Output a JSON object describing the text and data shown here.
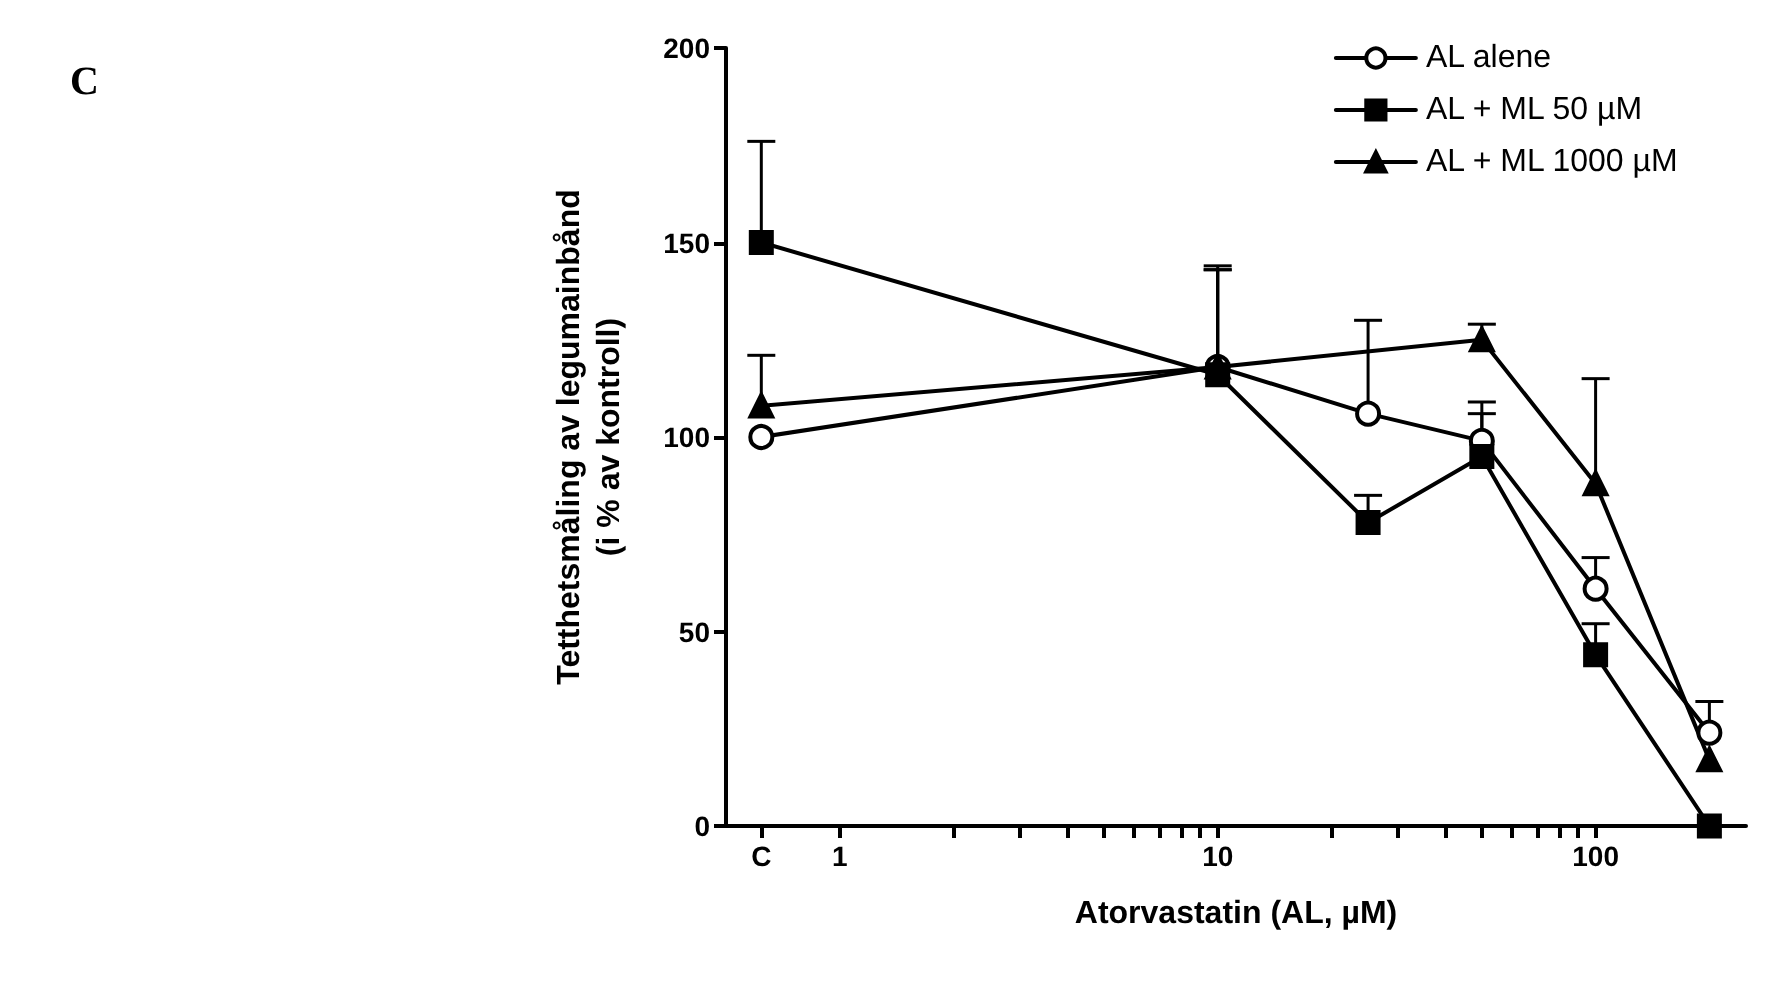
{
  "chart_data": {
    "type": "line",
    "title": "C",
    "xlabel": "Atorvastatin (AL, µM)",
    "ylabel": "Tetthetsmåling av legumainbånd\n(i % av kontroll)",
    "log": "x",
    "xlim": [
      0.5,
      250
    ],
    "ylim": [
      0,
      200
    ],
    "yticks": [
      0,
      50,
      100,
      150,
      200
    ],
    "xticks": [
      {
        "value": 0.62,
        "label": "C"
      },
      1,
      {
        "value": 2,
        "label": null
      },
      {
        "value": 3,
        "label": null
      },
      {
        "value": 4,
        "label": null
      },
      {
        "value": 5,
        "label": null
      },
      {
        "value": 6,
        "label": null
      },
      {
        "value": 7,
        "label": null
      },
      {
        "value": 8,
        "label": null
      },
      {
        "value": 9,
        "label": null
      },
      10,
      {
        "value": 20,
        "label": null
      },
      {
        "value": 30,
        "label": null
      },
      {
        "value": 40,
        "label": null
      },
      {
        "value": 50,
        "label": null
      },
      {
        "value": 60,
        "label": null
      },
      {
        "value": 70,
        "label": null
      },
      {
        "value": 80,
        "label": null
      },
      {
        "value": 90,
        "label": null
      },
      100,
      {
        "value": 200,
        "label": null
      }
    ],
    "grid": false,
    "legend": "top right",
    "line_style": "solid",
    "series": [
      {
        "name": "AL alene",
        "color": "#000000",
        "marker": "circle",
        "x": [
          0.62,
          10,
          25,
          50,
          100,
          200
        ],
        "values": [
          100,
          118,
          106,
          99,
          61,
          24
        ],
        "errors": [
          null,
          [
            118,
            144
          ],
          [
            106,
            130
          ],
          [
            99,
            109
          ],
          [
            61,
            69
          ],
          [
            24,
            32
          ]
        ]
      },
      {
        "name": "AL + ML 50 µM",
        "color": "#000000",
        "marker": "square",
        "x": [
          0.62,
          10,
          25,
          50,
          100,
          200
        ],
        "values": [
          150,
          116,
          78,
          95,
          44,
          0
        ],
        "errors": [
          [
            150,
            176
          ],
          [
            116,
            143
          ],
          [
            78,
            85
          ],
          [
            95,
            106
          ],
          [
            44,
            52
          ],
          null
        ]
      },
      {
        "name": "AL + ML 1000 µM",
        "color": "#000000",
        "marker": "triangle",
        "x": [
          0.62,
          10,
          50,
          100,
          200
        ],
        "values": [
          108,
          118,
          125,
          88,
          17
        ],
        "errors": [
          [
            108,
            121
          ],
          [
            118,
            143
          ],
          [
            125,
            129
          ],
          [
            88,
            115
          ],
          null
        ]
      }
    ]
  }
}
